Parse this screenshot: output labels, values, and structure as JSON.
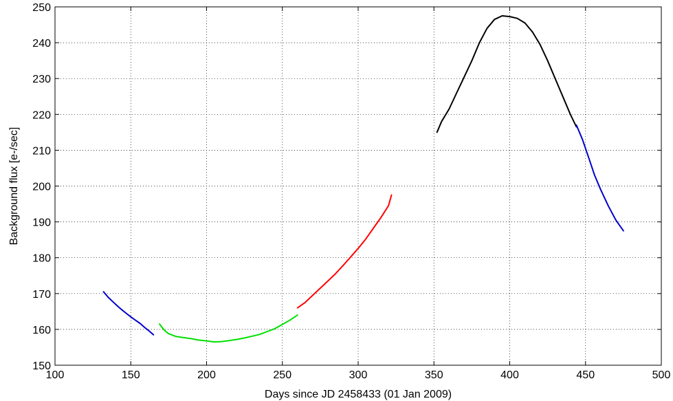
{
  "chart_data": {
    "type": "line",
    "title": "",
    "xlabel": "Days since JD 2458433 (01 Jan 2009)",
    "ylabel": "Background flux [e-/sec]",
    "xlim": [
      100,
      500
    ],
    "ylim": [
      150,
      250
    ],
    "xticks": [
      100,
      150,
      200,
      250,
      300,
      350,
      400,
      450,
      500
    ],
    "yticks": [
      150,
      160,
      170,
      180,
      190,
      200,
      210,
      220,
      230,
      240,
      250
    ],
    "grid": true,
    "legend": "none",
    "series": [
      {
        "color": "#0000cc",
        "x": [
          132,
          135,
          138,
          141,
          144,
          147,
          150,
          153,
          156,
          159,
          162,
          165
        ],
        "y": [
          170.5,
          169.0,
          167.8,
          166.6,
          165.5,
          164.5,
          163.5,
          162.6,
          161.7,
          160.6,
          159.6,
          158.5
        ]
      },
      {
        "color": "#00e000",
        "x": [
          169,
          172,
          175,
          180,
          185,
          190,
          195,
          200,
          205,
          210,
          215,
          220,
          225,
          230,
          235,
          240,
          245,
          250,
          255,
          260
        ],
        "y": [
          161.5,
          159.8,
          158.8,
          158.0,
          157.7,
          157.4,
          157.0,
          156.8,
          156.5,
          156.6,
          156.9,
          157.2,
          157.6,
          158.1,
          158.6,
          159.4,
          160.2,
          161.4,
          162.6,
          164.0
        ]
      },
      {
        "color": "#ff0000",
        "x": [
          260,
          265,
          270,
          275,
          280,
          285,
          290,
          295,
          300,
          305,
          310,
          315,
          320,
          322
        ],
        "y": [
          166.0,
          167.5,
          169.5,
          171.5,
          173.5,
          175.5,
          177.8,
          180.2,
          182.6,
          185.2,
          188.2,
          191.2,
          194.5,
          197.5
        ]
      },
      {
        "color": "#000000",
        "x": [
          352,
          355,
          360,
          365,
          370,
          375,
          380,
          385,
          390,
          395,
          400,
          405,
          410,
          415,
          420,
          425,
          430,
          435,
          440,
          444
        ],
        "y": [
          215.0,
          218.0,
          221.5,
          226.0,
          230.5,
          235.0,
          240.0,
          244.0,
          246.5,
          247.5,
          247.3,
          246.8,
          245.5,
          243.0,
          239.5,
          235.0,
          230.0,
          225.0,
          220.0,
          216.5
        ]
      },
      {
        "color": "#0000cc",
        "x": [
          444,
          448,
          452,
          456,
          460,
          465,
          470,
          475
        ],
        "y": [
          217.0,
          213.0,
          208.0,
          203.0,
          199.0,
          194.5,
          190.5,
          187.5
        ]
      }
    ]
  }
}
